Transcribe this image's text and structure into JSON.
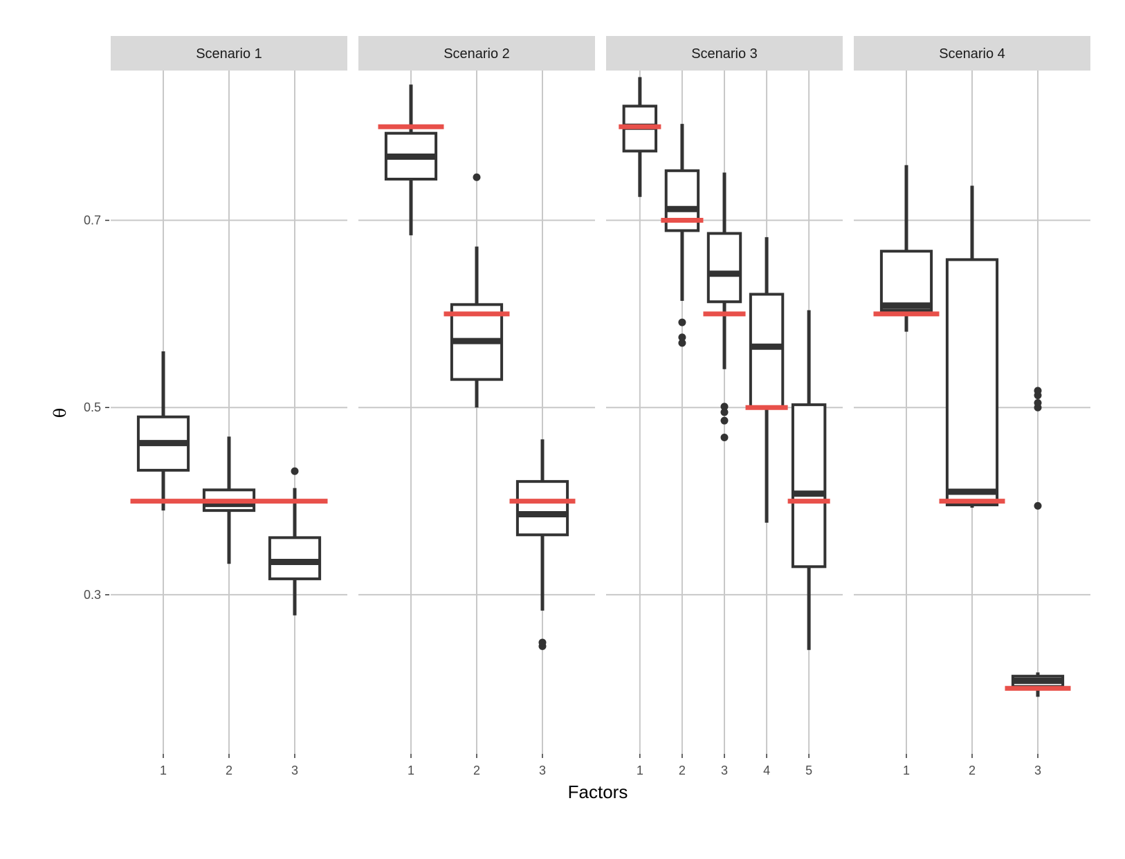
{
  "chart_data": {
    "type": "boxplot",
    "xlabel": "Factors",
    "ylabel": "θ",
    "ylim": [
      0.13,
      0.86
    ],
    "yticks": [
      0.3,
      0.5,
      0.7
    ],
    "ytick_labels": [
      "0.3",
      "0.5",
      "0.7"
    ],
    "colors": {
      "box": "#333333",
      "truth": "#e8504a",
      "grid": "#c8c8c8",
      "strip": "#d9d9d9"
    },
    "legend": "none",
    "panels": [
      {
        "name": "Scenario 1",
        "factors": [
          "1",
          "2",
          "3"
        ],
        "boxes": [
          {
            "factor": "1",
            "q1": 0.433,
            "median": 0.462,
            "q3": 0.49,
            "whisker_low": 0.39,
            "whisker_high": 0.56,
            "outliers": []
          },
          {
            "factor": "2",
            "q1": 0.39,
            "median": 0.397,
            "q3": 0.412,
            "whisker_low": 0.333,
            "whisker_high": 0.469,
            "outliers": []
          },
          {
            "factor": "3",
            "q1": 0.317,
            "median": 0.335,
            "q3": 0.361,
            "whisker_low": 0.278,
            "whisker_high": 0.414,
            "outliers": [
              0.432
            ]
          }
        ],
        "truth": {
          "from": "1",
          "to": "3",
          "value": 0.4
        }
      },
      {
        "name": "Scenario 2",
        "factors": [
          "1",
          "2",
          "3"
        ],
        "boxes": [
          {
            "factor": "1",
            "q1": 0.744,
            "median": 0.768,
            "q3": 0.793,
            "whisker_low": 0.684,
            "whisker_high": 0.845,
            "outliers": []
          },
          {
            "factor": "2",
            "q1": 0.53,
            "median": 0.571,
            "q3": 0.61,
            "whisker_low": 0.5,
            "whisker_high": 0.672,
            "outliers": [
              0.746
            ]
          },
          {
            "factor": "3",
            "q1": 0.364,
            "median": 0.386,
            "q3": 0.421,
            "whisker_low": 0.283,
            "whisker_high": 0.466,
            "outliers": [
              0.245,
              0.249
            ]
          }
        ],
        "truth": [
          {
            "factor": "1",
            "value": 0.8
          },
          {
            "factor": "2",
            "value": 0.6
          },
          {
            "factor": "3",
            "value": 0.4
          }
        ]
      },
      {
        "name": "Scenario 3",
        "factors": [
          "1",
          "2",
          "3",
          "4",
          "5"
        ],
        "boxes": [
          {
            "factor": "1",
            "q1": 0.774,
            "median": 0.8,
            "q3": 0.822,
            "whisker_low": 0.725,
            "whisker_high": 0.853,
            "outliers": []
          },
          {
            "factor": "2",
            "q1": 0.689,
            "median": 0.712,
            "q3": 0.753,
            "whisker_low": 0.614,
            "whisker_high": 0.803,
            "outliers": [
              0.569,
              0.575,
              0.591
            ]
          },
          {
            "factor": "3",
            "q1": 0.613,
            "median": 0.643,
            "q3": 0.686,
            "whisker_low": 0.541,
            "whisker_high": 0.751,
            "outliers": [
              0.468,
              0.486,
              0.495,
              0.501
            ]
          },
          {
            "factor": "4",
            "q1": 0.5,
            "median": 0.565,
            "q3": 0.621,
            "whisker_low": 0.377,
            "whisker_high": 0.682,
            "outliers": []
          },
          {
            "factor": "5",
            "q1": 0.33,
            "median": 0.408,
            "q3": 0.503,
            "whisker_low": 0.241,
            "whisker_high": 0.604,
            "outliers": []
          }
        ],
        "truth": [
          {
            "factor": "1",
            "value": 0.8
          },
          {
            "factor": "2",
            "value": 0.7
          },
          {
            "factor": "3",
            "value": 0.6
          },
          {
            "factor": "4",
            "value": 0.5
          },
          {
            "factor": "5",
            "value": 0.4
          }
        ]
      },
      {
        "name": "Scenario 4",
        "factors": [
          "1",
          "2",
          "3"
        ],
        "boxes": [
          {
            "factor": "1",
            "q1": 0.604,
            "median": 0.609,
            "q3": 0.667,
            "whisker_low": 0.581,
            "whisker_high": 0.759,
            "outliers": []
          },
          {
            "factor": "2",
            "q1": 0.396,
            "median": 0.41,
            "q3": 0.658,
            "whisker_low": 0.393,
            "whisker_high": 0.737,
            "outliers": []
          },
          {
            "factor": "3",
            "q1": 0.202,
            "median": 0.208,
            "q3": 0.213,
            "whisker_low": 0.191,
            "whisker_high": 0.217,
            "outliers": [
              0.395,
              0.5,
              0.505,
              0.513,
              0.518
            ]
          }
        ],
        "truth": [
          {
            "factor": "1",
            "value": 0.6
          },
          {
            "factor": "2",
            "value": 0.4
          },
          {
            "factor": "3",
            "value": 0.2
          }
        ]
      }
    ]
  }
}
